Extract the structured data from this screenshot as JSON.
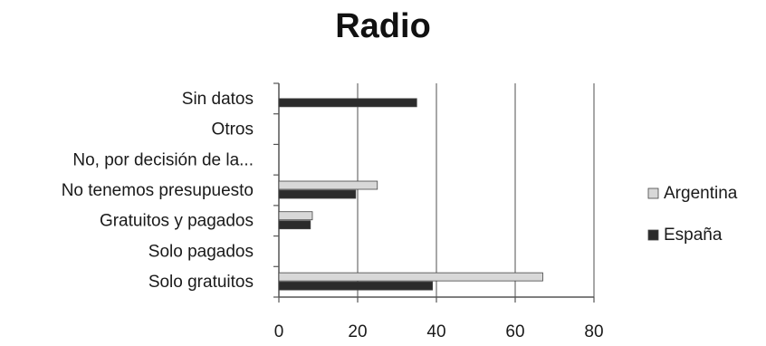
{
  "chart_data": {
    "type": "bar",
    "orientation": "horizontal",
    "title": "Radio",
    "categories": [
      "Solo gratuitos",
      "Solo pagados",
      "Gratuitos y pagados",
      "No tenemos presupuesto",
      "No, por decisión de la...",
      "Otros",
      "Sin datos"
    ],
    "series": [
      {
        "name": "Argentina",
        "color": "#d8d8d8",
        "values": [
          67,
          0,
          8.5,
          25,
          0,
          0,
          0
        ]
      },
      {
        "name": "España",
        "color": "#2b2b2b",
        "values": [
          39,
          0,
          8,
          19.5,
          0,
          0,
          35
        ]
      }
    ],
    "xlim": [
      0,
      80
    ],
    "xticks": [
      0,
      20,
      40,
      60,
      80
    ],
    "grid": true,
    "legend": "right"
  }
}
